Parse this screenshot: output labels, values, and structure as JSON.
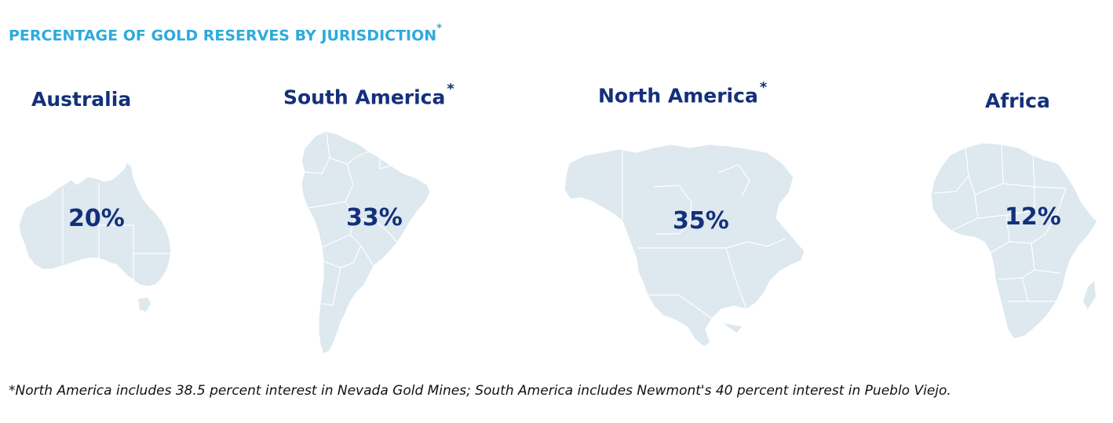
{
  "header": {
    "title": "PERCENTAGE OF GOLD RESERVES BY JURISDICTION",
    "title_mark": "*"
  },
  "colors": {
    "title": "#2eaadc",
    "label": "#14307a",
    "map_fill": "#dde8ef",
    "map_border": "#ffffff"
  },
  "chart_data": {
    "type": "table",
    "title": "PERCENTAGE OF GOLD RESERVES BY JURISDICTION",
    "categories": [
      "Australia",
      "South America",
      "North America",
      "Africa"
    ],
    "values": [
      20,
      33,
      35,
      12
    ],
    "unit": "%",
    "value_labels": [
      "20%",
      "33%",
      "35%",
      "12%"
    ],
    "category_marks": [
      "",
      "*",
      "*",
      ""
    ]
  },
  "regions": [
    {
      "name": "Australia",
      "mark": "",
      "value_label": "20%",
      "icon": "australia-map-icon"
    },
    {
      "name": "South America",
      "mark": "*",
      "value_label": "33%",
      "icon": "south-america-map-icon"
    },
    {
      "name": "North America",
      "mark": "*",
      "value_label": "35%",
      "icon": "north-america-map-icon"
    },
    {
      "name": "Africa",
      "mark": "",
      "value_label": "12%",
      "icon": "africa-map-icon"
    }
  ],
  "footnote": "*North America includes 38.5 percent interest in Nevada Gold Mines; South America includes Newmont's 40 percent interest in Pueblo Viejo."
}
